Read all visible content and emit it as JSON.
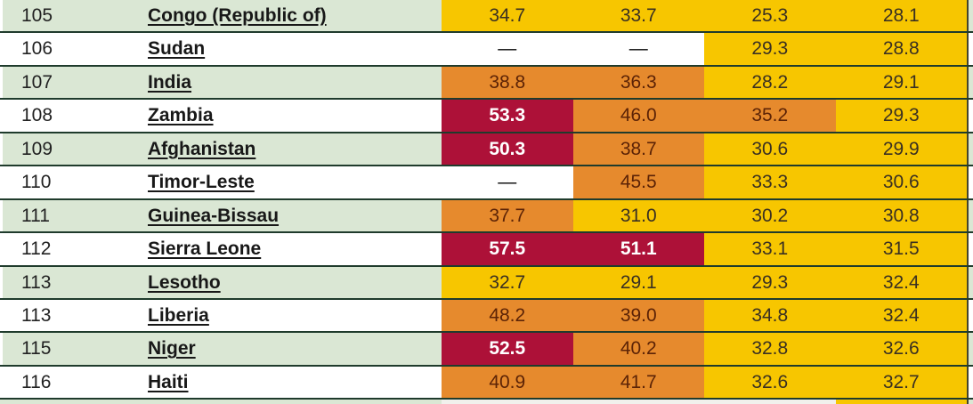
{
  "chart_data": {
    "type": "table",
    "rows": [
      {
        "rank": "105",
        "country": "Congo (Republic of)",
        "values": [
          "34.7",
          "33.7",
          "25.3",
          "28.1"
        ],
        "levels": [
          "serious",
          "serious",
          "serious",
          "serious"
        ]
      },
      {
        "rank": "106",
        "country": "Sudan",
        "values": [
          "—",
          "—",
          "29.3",
          "28.8"
        ],
        "levels": [
          "na",
          "na",
          "serious",
          "serious"
        ]
      },
      {
        "rank": "107",
        "country": "India",
        "values": [
          "38.8",
          "36.3",
          "28.2",
          "29.1"
        ],
        "levels": [
          "alarming",
          "alarming",
          "serious",
          "serious"
        ]
      },
      {
        "rank": "108",
        "country": "Zambia",
        "values": [
          "53.3",
          "46.0",
          "35.2",
          "29.3"
        ],
        "levels": [
          "extremely_alarming",
          "alarming",
          "alarming",
          "serious"
        ]
      },
      {
        "rank": "109",
        "country": "Afghanistan",
        "values": [
          "50.3",
          "38.7",
          "30.6",
          "29.9"
        ],
        "levels": [
          "extremely_alarming",
          "alarming",
          "serious",
          "serious"
        ]
      },
      {
        "rank": "110",
        "country": "Timor-Leste",
        "values": [
          "—",
          "45.5",
          "33.3",
          "30.6"
        ],
        "levels": [
          "na",
          "alarming",
          "serious",
          "serious"
        ]
      },
      {
        "rank": "111",
        "country": "Guinea-Bissau",
        "values": [
          "37.7",
          "31.0",
          "30.2",
          "30.8"
        ],
        "levels": [
          "alarming",
          "serious",
          "serious",
          "serious"
        ]
      },
      {
        "rank": "112",
        "country": "Sierra Leone",
        "values": [
          "57.5",
          "51.1",
          "33.1",
          "31.5"
        ],
        "levels": [
          "extremely_alarming",
          "extremely_alarming",
          "serious",
          "serious"
        ]
      },
      {
        "rank": "113",
        "country": "Lesotho",
        "values": [
          "32.7",
          "29.1",
          "29.3",
          "32.4"
        ],
        "levels": [
          "serious",
          "serious",
          "serious",
          "serious"
        ]
      },
      {
        "rank": "113",
        "country": "Liberia",
        "values": [
          "48.2",
          "39.0",
          "34.8",
          "32.4"
        ],
        "levels": [
          "alarming",
          "alarming",
          "serious",
          "serious"
        ]
      },
      {
        "rank": "115",
        "country": "Niger",
        "values": [
          "52.5",
          "40.2",
          "32.8",
          "32.6"
        ],
        "levels": [
          "extremely_alarming",
          "alarming",
          "serious",
          "serious"
        ]
      },
      {
        "rank": "116",
        "country": "Haiti",
        "values": [
          "40.9",
          "41.7",
          "32.6",
          "32.7"
        ],
        "levels": [
          "alarming",
          "alarming",
          "serious",
          "serious"
        ]
      }
    ],
    "partial_next_row": {
      "levels": [
        "na_dim",
        "na_dim",
        "na_dim",
        "serious"
      ]
    },
    "cell_colors": {
      "serious": "#f7c600",
      "alarming": "#e68a2d",
      "extremely_alarming": "#ad1138",
      "na": "#ffffff",
      "na_dim": "#f1f0ec"
    },
    "value_text_colors": {
      "serious": "#3a3022",
      "alarming": "#5c2306",
      "extremely_alarming": "#ffffff",
      "na": "#000000",
      "na_dim": "#000000"
    },
    "row_stripe_colors": {
      "green": "#dae7d4",
      "white": "#ffffff"
    }
  }
}
